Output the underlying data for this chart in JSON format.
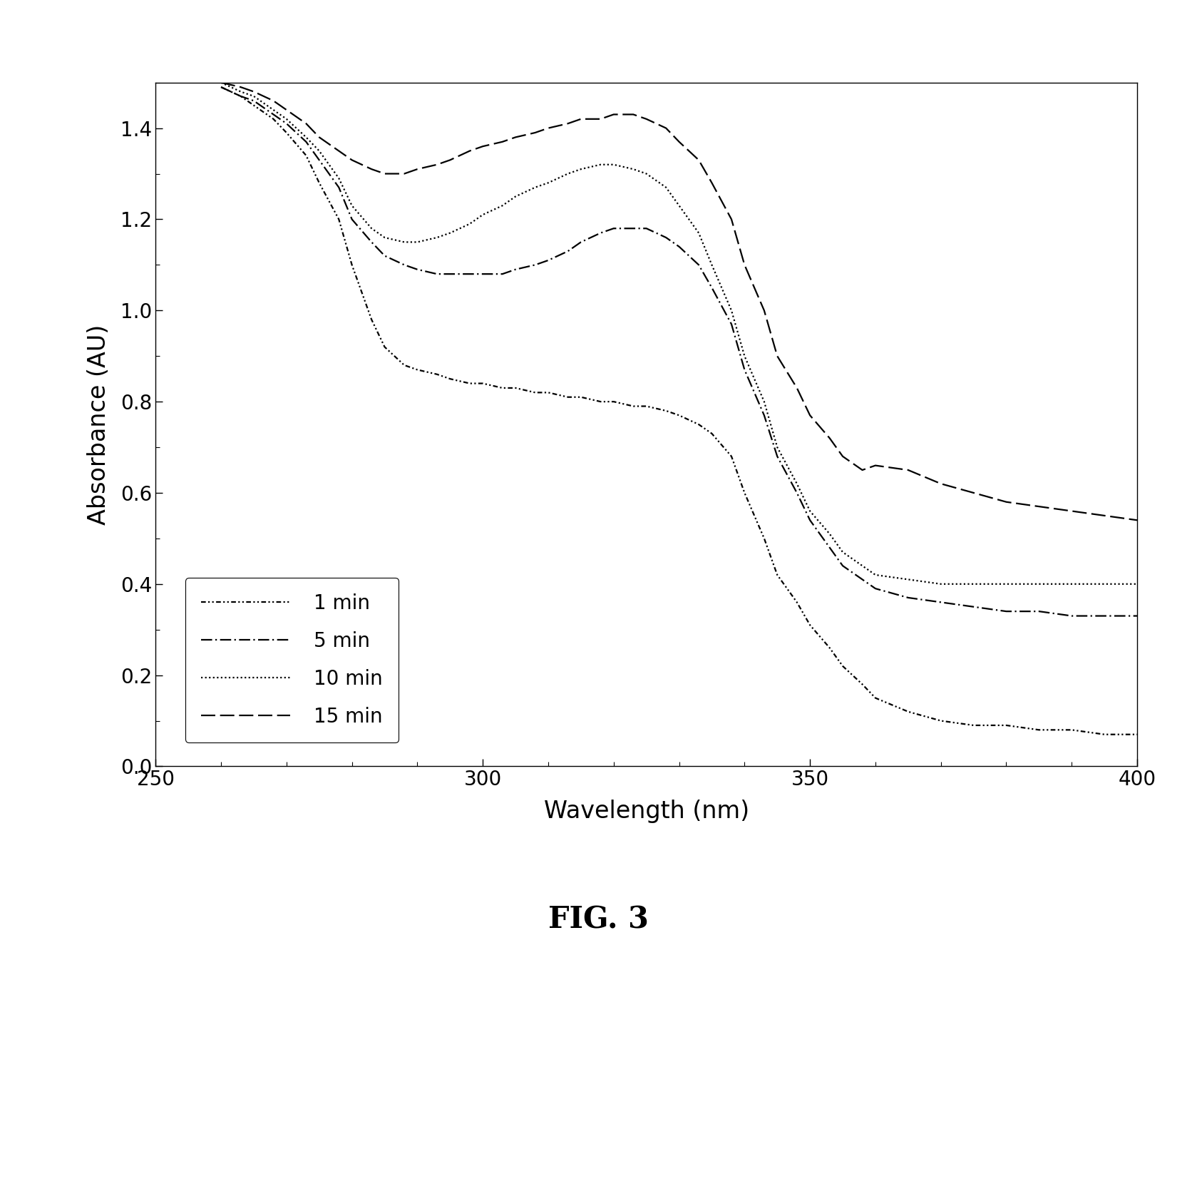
{
  "xlabel": "Wavelength (nm)",
  "ylabel": "Absorbance (AU)",
  "fig_label": "FIG. 3",
  "xlim": [
    250,
    400
  ],
  "ylim": [
    0.0,
    1.5
  ],
  "yticks": [
    0.0,
    0.2,
    0.4,
    0.6,
    0.8,
    1.0,
    1.2,
    1.4
  ],
  "xticks": [
    250,
    300,
    350,
    400
  ],
  "background_color": "#ffffff",
  "line_color": "#000000",
  "series": [
    {
      "label": "1 min",
      "x": [
        260,
        263,
        265,
        268,
        270,
        273,
        275,
        278,
        280,
        283,
        285,
        288,
        290,
        293,
        295,
        298,
        300,
        303,
        305,
        308,
        310,
        313,
        315,
        318,
        320,
        323,
        325,
        328,
        330,
        333,
        335,
        338,
        340,
        343,
        345,
        348,
        350,
        353,
        355,
        358,
        360,
        365,
        370,
        375,
        380,
        385,
        390,
        395,
        400
      ],
      "y": [
        1.49,
        1.47,
        1.45,
        1.42,
        1.39,
        1.34,
        1.28,
        1.2,
        1.1,
        0.98,
        0.92,
        0.88,
        0.87,
        0.86,
        0.85,
        0.84,
        0.84,
        0.83,
        0.83,
        0.82,
        0.82,
        0.81,
        0.81,
        0.8,
        0.8,
        0.79,
        0.79,
        0.78,
        0.77,
        0.75,
        0.73,
        0.68,
        0.6,
        0.5,
        0.42,
        0.36,
        0.31,
        0.26,
        0.22,
        0.18,
        0.15,
        0.12,
        0.1,
        0.09,
        0.09,
        0.08,
        0.08,
        0.07,
        0.07
      ]
    },
    {
      "label": "5 min",
      "x": [
        260,
        263,
        265,
        268,
        270,
        273,
        275,
        278,
        280,
        283,
        285,
        288,
        290,
        293,
        295,
        298,
        300,
        303,
        305,
        308,
        310,
        313,
        315,
        318,
        320,
        323,
        325,
        328,
        330,
        333,
        335,
        338,
        340,
        343,
        345,
        348,
        350,
        353,
        355,
        358,
        360,
        365,
        370,
        375,
        380,
        385,
        390,
        395,
        400
      ],
      "y": [
        1.49,
        1.47,
        1.46,
        1.43,
        1.41,
        1.37,
        1.33,
        1.27,
        1.2,
        1.15,
        1.12,
        1.1,
        1.09,
        1.08,
        1.08,
        1.08,
        1.08,
        1.08,
        1.09,
        1.1,
        1.11,
        1.13,
        1.15,
        1.17,
        1.18,
        1.18,
        1.18,
        1.16,
        1.14,
        1.1,
        1.05,
        0.97,
        0.87,
        0.77,
        0.68,
        0.6,
        0.54,
        0.48,
        0.44,
        0.41,
        0.39,
        0.37,
        0.36,
        0.35,
        0.34,
        0.34,
        0.33,
        0.33,
        0.33
      ]
    },
    {
      "label": "10 min",
      "x": [
        260,
        263,
        265,
        268,
        270,
        273,
        275,
        278,
        280,
        283,
        285,
        288,
        290,
        293,
        295,
        298,
        300,
        303,
        305,
        308,
        310,
        313,
        315,
        318,
        320,
        323,
        325,
        328,
        330,
        333,
        335,
        338,
        340,
        343,
        345,
        348,
        350,
        353,
        355,
        358,
        360,
        365,
        370,
        375,
        380,
        385,
        390,
        395,
        400
      ],
      "y": [
        1.5,
        1.48,
        1.47,
        1.44,
        1.42,
        1.38,
        1.35,
        1.29,
        1.23,
        1.18,
        1.16,
        1.15,
        1.15,
        1.16,
        1.17,
        1.19,
        1.21,
        1.23,
        1.25,
        1.27,
        1.28,
        1.3,
        1.31,
        1.32,
        1.32,
        1.31,
        1.3,
        1.27,
        1.23,
        1.17,
        1.1,
        1.0,
        0.9,
        0.8,
        0.7,
        0.62,
        0.56,
        0.51,
        0.47,
        0.44,
        0.42,
        0.41,
        0.4,
        0.4,
        0.4,
        0.4,
        0.4,
        0.4,
        0.4
      ]
    },
    {
      "label": "15 min",
      "x": [
        260,
        263,
        265,
        268,
        270,
        273,
        275,
        278,
        280,
        283,
        285,
        288,
        290,
        293,
        295,
        298,
        300,
        303,
        305,
        308,
        310,
        313,
        315,
        318,
        320,
        323,
        325,
        328,
        330,
        333,
        335,
        338,
        340,
        343,
        345,
        348,
        350,
        353,
        355,
        358,
        360,
        365,
        370,
        375,
        380,
        385,
        390,
        395,
        400
      ],
      "y": [
        1.5,
        1.49,
        1.48,
        1.46,
        1.44,
        1.41,
        1.38,
        1.35,
        1.33,
        1.31,
        1.3,
        1.3,
        1.31,
        1.32,
        1.33,
        1.35,
        1.36,
        1.37,
        1.38,
        1.39,
        1.4,
        1.41,
        1.42,
        1.42,
        1.43,
        1.43,
        1.42,
        1.4,
        1.37,
        1.33,
        1.28,
        1.2,
        1.1,
        1.0,
        0.9,
        0.83,
        0.77,
        0.72,
        0.68,
        0.65,
        0.66,
        0.65,
        0.62,
        0.6,
        0.58,
        0.57,
        0.56,
        0.55,
        0.54
      ]
    }
  ]
}
